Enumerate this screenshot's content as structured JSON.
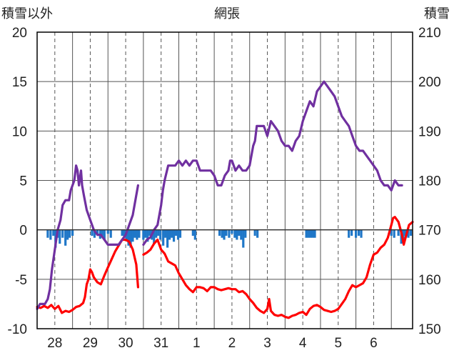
{
  "chart_data": {
    "type": "line",
    "title": "網張",
    "left_axis_label": "積雪以外",
    "right_axis_label": "積雪",
    "left_ylim": [
      -10,
      20
    ],
    "left_ticks": [
      -10,
      -5,
      0,
      5,
      10,
      15,
      20
    ],
    "right_ylim": [
      150,
      210
    ],
    "right_ticks": [
      150,
      160,
      170,
      180,
      190,
      200,
      210
    ],
    "x_range": [
      0,
      10.6
    ],
    "x_tick_labels": [
      "28",
      "29",
      "30",
      "31",
      "1",
      "2",
      "3",
      "4",
      "5",
      "6"
    ],
    "x_tick_positions": [
      0.5,
      1.5,
      2.5,
      3.5,
      4.5,
      5.5,
      6.5,
      7.5,
      8.5,
      9.5
    ],
    "grid": true,
    "colors": {
      "snow_depth": "#7030a0",
      "temperature": "#ff0000",
      "precipitation": "#1f77c8",
      "axis": "#000000",
      "grid": "#555555"
    },
    "series": [
      {
        "axis": "right",
        "points": [
          [
            0.0,
            154
          ],
          [
            0.08,
            155
          ],
          [
            0.22,
            155
          ],
          [
            0.3,
            156
          ],
          [
            0.36,
            158
          ],
          [
            0.42,
            162
          ],
          [
            0.5,
            166
          ],
          [
            0.58,
            170
          ],
          [
            0.66,
            172
          ],
          [
            0.72,
            175
          ],
          [
            0.8,
            176
          ],
          [
            0.9,
            176
          ],
          [
            0.95,
            178
          ],
          [
            1.0,
            179
          ],
          [
            1.05,
            180
          ],
          [
            1.1,
            183
          ],
          [
            1.14,
            182
          ],
          [
            1.18,
            179
          ],
          [
            1.24,
            182
          ],
          [
            1.27,
            179
          ],
          [
            1.32,
            177
          ],
          [
            1.4,
            174
          ],
          [
            1.5,
            172
          ],
          [
            1.6,
            170
          ],
          [
            1.7,
            169
          ],
          [
            1.8,
            169
          ],
          [
            1.9,
            168
          ],
          [
            2.0,
            167
          ],
          [
            2.2,
            167
          ],
          [
            2.3,
            167
          ],
          [
            2.4,
            168
          ],
          [
            2.5,
            169
          ],
          [
            2.6,
            171
          ],
          [
            2.7,
            173
          ],
          [
            2.8,
            177
          ],
          [
            2.85,
            179
          ],
          [
            3.0,
            167
          ],
          [
            3.1,
            168
          ],
          [
            3.2,
            168.5
          ],
          [
            3.3,
            170
          ],
          [
            3.4,
            171
          ],
          [
            3.5,
            175
          ],
          [
            3.55,
            178
          ],
          [
            3.6,
            180
          ],
          [
            3.7,
            183
          ],
          [
            3.8,
            183
          ],
          [
            3.9,
            183
          ],
          [
            4.0,
            184
          ],
          [
            4.1,
            183
          ],
          [
            4.2,
            184
          ],
          [
            4.3,
            183
          ],
          [
            4.4,
            184
          ],
          [
            4.5,
            184
          ],
          [
            4.6,
            182
          ],
          [
            4.7,
            182
          ],
          [
            4.8,
            182
          ],
          [
            4.9,
            182
          ],
          [
            5.0,
            181
          ],
          [
            5.1,
            179
          ],
          [
            5.2,
            179
          ],
          [
            5.3,
            181
          ],
          [
            5.4,
            182
          ],
          [
            5.45,
            184
          ],
          [
            5.5,
            184
          ],
          [
            5.55,
            183
          ],
          [
            5.6,
            182
          ],
          [
            5.7,
            183
          ],
          [
            5.8,
            182
          ],
          [
            5.9,
            182
          ],
          [
            6.0,
            183
          ],
          [
            6.05,
            185
          ],
          [
            6.1,
            187
          ],
          [
            6.15,
            188
          ],
          [
            6.2,
            191
          ],
          [
            6.3,
            191
          ],
          [
            6.4,
            191
          ],
          [
            6.5,
            189
          ],
          [
            6.6,
            192
          ],
          [
            6.7,
            191
          ],
          [
            6.8,
            190
          ],
          [
            6.9,
            188
          ],
          [
            7.0,
            187
          ],
          [
            7.1,
            187
          ],
          [
            7.2,
            186
          ],
          [
            7.3,
            188
          ],
          [
            7.4,
            189
          ],
          [
            7.5,
            192
          ],
          [
            7.6,
            194
          ],
          [
            7.7,
            196
          ],
          [
            7.8,
            195
          ],
          [
            7.9,
            198
          ],
          [
            8.0,
            199
          ],
          [
            8.1,
            200
          ],
          [
            8.2,
            199
          ],
          [
            8.3,
            198
          ],
          [
            8.4,
            197
          ],
          [
            8.5,
            195
          ],
          [
            8.6,
            193
          ],
          [
            8.7,
            192
          ],
          [
            8.8,
            191
          ],
          [
            8.9,
            189
          ],
          [
            9.0,
            187
          ],
          [
            9.1,
            186
          ],
          [
            9.2,
            186
          ],
          [
            9.3,
            185
          ],
          [
            9.4,
            184
          ],
          [
            9.5,
            183
          ],
          [
            9.6,
            182
          ],
          [
            9.7,
            180
          ],
          [
            9.8,
            179
          ],
          [
            9.9,
            179
          ],
          [
            10.0,
            178
          ],
          [
            10.1,
            180
          ],
          [
            10.2,
            179
          ],
          [
            10.3,
            179
          ]
        ]
      },
      {
        "axis": "left",
        "points": [
          [
            0.0,
            -7.8
          ],
          [
            0.1,
            -7.9
          ],
          [
            0.2,
            -7.7
          ],
          [
            0.3,
            -7.9
          ],
          [
            0.4,
            -7.6
          ],
          [
            0.5,
            -8.0
          ],
          [
            0.6,
            -7.7
          ],
          [
            0.7,
            -8.4
          ],
          [
            0.8,
            -8.2
          ],
          [
            0.9,
            -8.3
          ],
          [
            1.0,
            -8.1
          ],
          [
            1.1,
            -7.8
          ],
          [
            1.2,
            -7.7
          ],
          [
            1.3,
            -7.4
          ],
          [
            1.35,
            -6.8
          ],
          [
            1.4,
            -5.5
          ],
          [
            1.45,
            -5.0
          ],
          [
            1.5,
            -4.0
          ],
          [
            1.55,
            -4.3
          ],
          [
            1.6,
            -4.8
          ],
          [
            1.7,
            -5.3
          ],
          [
            1.8,
            -5.5
          ],
          [
            1.9,
            -4.6
          ],
          [
            2.0,
            -3.8
          ],
          [
            2.1,
            -3.0
          ],
          [
            2.2,
            -2.2
          ],
          [
            2.3,
            -1.6
          ],
          [
            2.4,
            -1.0
          ],
          [
            2.5,
            -1.0
          ],
          [
            2.6,
            -1.2
          ],
          [
            2.7,
            -2.0
          ],
          [
            2.8,
            -3.5
          ],
          [
            2.85,
            -5.8
          ],
          [
            3.0,
            -2.5
          ],
          [
            3.1,
            -2.3
          ],
          [
            3.2,
            -2.0
          ],
          [
            3.3,
            -1.4
          ],
          [
            3.4,
            -1.0
          ],
          [
            3.5,
            -2.0
          ],
          [
            3.6,
            -2.4
          ],
          [
            3.7,
            -3.2
          ],
          [
            3.8,
            -3.4
          ],
          [
            3.9,
            -3.6
          ],
          [
            4.0,
            -4.4
          ],
          [
            4.1,
            -5.0
          ],
          [
            4.2,
            -5.6
          ],
          [
            4.3,
            -6.0
          ],
          [
            4.4,
            -6.3
          ],
          [
            4.5,
            -5.8
          ],
          [
            4.6,
            -5.8
          ],
          [
            4.7,
            -5.9
          ],
          [
            4.8,
            -6.2
          ],
          [
            4.9,
            -5.8
          ],
          [
            5.0,
            -5.8
          ],
          [
            5.1,
            -6.0
          ],
          [
            5.2,
            -6.1
          ],
          [
            5.3,
            -6.0
          ],
          [
            5.4,
            -5.9
          ],
          [
            5.5,
            -6.0
          ],
          [
            5.6,
            -6.0
          ],
          [
            5.7,
            -6.3
          ],
          [
            5.8,
            -6.2
          ],
          [
            5.9,
            -6.5
          ],
          [
            6.0,
            -7.0
          ],
          [
            6.1,
            -7.4
          ],
          [
            6.2,
            -7.9
          ],
          [
            6.3,
            -8.2
          ],
          [
            6.4,
            -8.4
          ],
          [
            6.5,
            -8.0
          ],
          [
            6.55,
            -7.0
          ],
          [
            6.6,
            -8.2
          ],
          [
            6.7,
            -8.6
          ],
          [
            6.8,
            -8.7
          ],
          [
            6.9,
            -8.6
          ],
          [
            7.0,
            -8.8
          ],
          [
            7.1,
            -8.9
          ],
          [
            7.2,
            -8.7
          ],
          [
            7.3,
            -8.6
          ],
          [
            7.4,
            -8.4
          ],
          [
            7.5,
            -8.3
          ],
          [
            7.6,
            -8.6
          ],
          [
            7.7,
            -8.0
          ],
          [
            7.8,
            -7.7
          ],
          [
            7.9,
            -7.6
          ],
          [
            8.0,
            -7.8
          ],
          [
            8.1,
            -8.1
          ],
          [
            8.2,
            -8.2
          ],
          [
            8.3,
            -8.3
          ],
          [
            8.4,
            -8.2
          ],
          [
            8.5,
            -8.0
          ],
          [
            8.6,
            -7.5
          ],
          [
            8.7,
            -7.0
          ],
          [
            8.8,
            -6.2
          ],
          [
            8.9,
            -5.6
          ],
          [
            9.0,
            -5.8
          ],
          [
            9.1,
            -5.6
          ],
          [
            9.2,
            -5.4
          ],
          [
            9.3,
            -4.8
          ],
          [
            9.4,
            -3.5
          ],
          [
            9.5,
            -2.5
          ],
          [
            9.6,
            -2.3
          ],
          [
            9.7,
            -1.8
          ],
          [
            9.8,
            -1.5
          ],
          [
            9.9,
            -0.8
          ],
          [
            10.0,
            0.5
          ],
          [
            10.05,
            1.2
          ],
          [
            10.1,
            1.3
          ],
          [
            10.2,
            0.8
          ],
          [
            10.3,
            -0.5
          ],
          [
            10.35,
            -1.5
          ],
          [
            10.4,
            -0.8
          ],
          [
            10.5,
            0.5
          ],
          [
            10.6,
            0.8
          ]
        ]
      },
      {
        "axis": "left",
        "type": "bar",
        "points": [
          [
            0.3,
            -0.8
          ],
          [
            0.38,
            -1.0
          ],
          [
            0.46,
            -0.6
          ],
          [
            0.52,
            -1.8
          ],
          [
            0.58,
            -0.8
          ],
          [
            0.64,
            -1.4
          ],
          [
            0.72,
            -0.8
          ],
          [
            0.8,
            -1.6
          ],
          [
            0.86,
            -1.0
          ],
          [
            0.92,
            -0.8
          ],
          [
            1.0,
            -0.6
          ],
          [
            1.55,
            -0.6
          ],
          [
            1.62,
            -0.8
          ],
          [
            1.7,
            -0.5
          ],
          [
            1.78,
            -0.9
          ],
          [
            1.84,
            -0.6
          ],
          [
            1.9,
            -1.0
          ],
          [
            2.0,
            -0.4
          ],
          [
            2.08,
            -0.8
          ],
          [
            2.4,
            -0.6
          ],
          [
            2.46,
            -0.8
          ],
          [
            2.52,
            -1.0
          ],
          [
            2.58,
            -1.6
          ],
          [
            2.64,
            -1.8
          ],
          [
            2.7,
            -1.2
          ],
          [
            2.76,
            -0.8
          ],
          [
            2.82,
            -1.0
          ],
          [
            2.88,
            -0.8
          ],
          [
            3.0,
            -1.0
          ],
          [
            3.06,
            -0.8
          ],
          [
            3.12,
            -1.2
          ],
          [
            3.18,
            -0.6
          ],
          [
            3.24,
            -1.0
          ],
          [
            3.3,
            -1.4
          ],
          [
            3.36,
            -0.8
          ],
          [
            3.42,
            -0.6
          ],
          [
            3.48,
            -1.0
          ],
          [
            3.56,
            -1.6
          ],
          [
            3.62,
            -0.8
          ],
          [
            3.68,
            -1.8
          ],
          [
            3.74,
            -1.0
          ],
          [
            3.8,
            -0.8
          ],
          [
            3.86,
            -1.2
          ],
          [
            3.92,
            -0.6
          ],
          [
            3.98,
            -1.0
          ],
          [
            4.04,
            -0.8
          ],
          [
            4.4,
            -0.6
          ],
          [
            4.46,
            -1.0
          ],
          [
            5.15,
            -0.6
          ],
          [
            5.22,
            -0.8
          ],
          [
            5.28,
            -1.0
          ],
          [
            5.34,
            -0.6
          ],
          [
            5.42,
            -0.8
          ],
          [
            5.5,
            -0.4
          ],
          [
            5.58,
            -0.8
          ],
          [
            5.64,
            -1.0
          ],
          [
            5.7,
            -0.6
          ],
          [
            5.76,
            -1.0
          ],
          [
            5.82,
            -1.8
          ],
          [
            5.88,
            -0.8
          ],
          [
            6.15,
            -0.6
          ],
          [
            6.22,
            -0.8
          ],
          [
            7.6,
            -0.8
          ],
          [
            7.66,
            -0.8
          ],
          [
            7.72,
            -0.8
          ],
          [
            7.78,
            -0.8
          ],
          [
            7.84,
            -0.8
          ],
          [
            8.8,
            -0.8
          ],
          [
            8.88,
            -0.6
          ],
          [
            9.0,
            -0.8
          ],
          [
            9.08,
            -0.6
          ],
          [
            9.15,
            -0.8
          ],
          [
            10.0,
            -0.6
          ],
          [
            10.08,
            -0.8
          ],
          [
            10.2,
            -0.6
          ],
          [
            10.28,
            -1.4
          ],
          [
            10.34,
            -1.0
          ],
          [
            10.4,
            -0.6
          ],
          [
            10.48,
            -0.8
          ],
          [
            10.55,
            -0.6
          ]
        ]
      }
    ]
  }
}
